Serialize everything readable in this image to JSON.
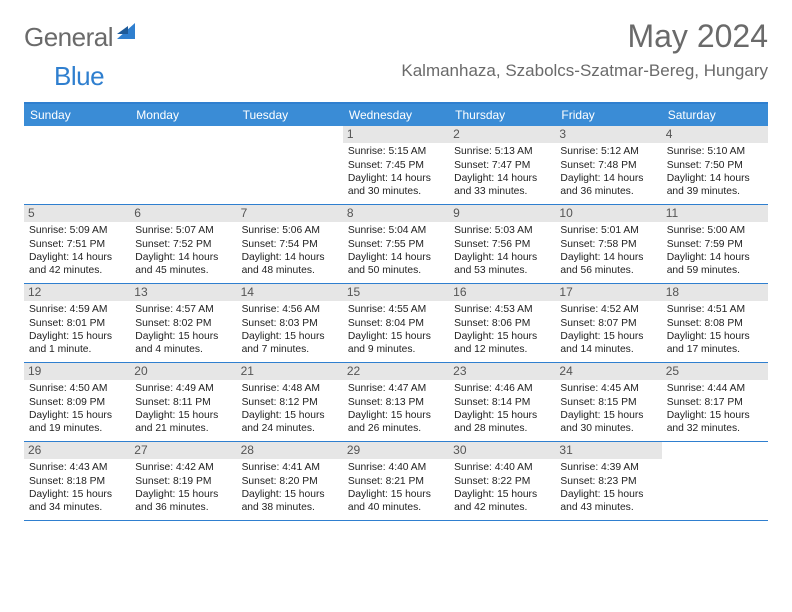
{
  "logo": {
    "text_general": "General",
    "text_blue": "Blue"
  },
  "title": "May 2024",
  "location": "Kalmanhaza, Szabolcs-Szatmar-Bereg, Hungary",
  "colors": {
    "header_bar": "#3a8cd6",
    "border": "#2f7fcf",
    "daynum_bg": "#e6e6e6",
    "text_grey": "#6a6a6a",
    "logo_blue": "#2f7fcf"
  },
  "dow": [
    "Sunday",
    "Monday",
    "Tuesday",
    "Wednesday",
    "Thursday",
    "Friday",
    "Saturday"
  ],
  "weeks": [
    [
      null,
      null,
      null,
      {
        "n": "1",
        "sr": "5:15 AM",
        "ss": "7:45 PM",
        "dl": "14 hours and 30 minutes."
      },
      {
        "n": "2",
        "sr": "5:13 AM",
        "ss": "7:47 PM",
        "dl": "14 hours and 33 minutes."
      },
      {
        "n": "3",
        "sr": "5:12 AM",
        "ss": "7:48 PM",
        "dl": "14 hours and 36 minutes."
      },
      {
        "n": "4",
        "sr": "5:10 AM",
        "ss": "7:50 PM",
        "dl": "14 hours and 39 minutes."
      }
    ],
    [
      {
        "n": "5",
        "sr": "5:09 AM",
        "ss": "7:51 PM",
        "dl": "14 hours and 42 minutes."
      },
      {
        "n": "6",
        "sr": "5:07 AM",
        "ss": "7:52 PM",
        "dl": "14 hours and 45 minutes."
      },
      {
        "n": "7",
        "sr": "5:06 AM",
        "ss": "7:54 PM",
        "dl": "14 hours and 48 minutes."
      },
      {
        "n": "8",
        "sr": "5:04 AM",
        "ss": "7:55 PM",
        "dl": "14 hours and 50 minutes."
      },
      {
        "n": "9",
        "sr": "5:03 AM",
        "ss": "7:56 PM",
        "dl": "14 hours and 53 minutes."
      },
      {
        "n": "10",
        "sr": "5:01 AM",
        "ss": "7:58 PM",
        "dl": "14 hours and 56 minutes."
      },
      {
        "n": "11",
        "sr": "5:00 AM",
        "ss": "7:59 PM",
        "dl": "14 hours and 59 minutes."
      }
    ],
    [
      {
        "n": "12",
        "sr": "4:59 AM",
        "ss": "8:01 PM",
        "dl": "15 hours and 1 minute."
      },
      {
        "n": "13",
        "sr": "4:57 AM",
        "ss": "8:02 PM",
        "dl": "15 hours and 4 minutes."
      },
      {
        "n": "14",
        "sr": "4:56 AM",
        "ss": "8:03 PM",
        "dl": "15 hours and 7 minutes."
      },
      {
        "n": "15",
        "sr": "4:55 AM",
        "ss": "8:04 PM",
        "dl": "15 hours and 9 minutes."
      },
      {
        "n": "16",
        "sr": "4:53 AM",
        "ss": "8:06 PM",
        "dl": "15 hours and 12 minutes."
      },
      {
        "n": "17",
        "sr": "4:52 AM",
        "ss": "8:07 PM",
        "dl": "15 hours and 14 minutes."
      },
      {
        "n": "18",
        "sr": "4:51 AM",
        "ss": "8:08 PM",
        "dl": "15 hours and 17 minutes."
      }
    ],
    [
      {
        "n": "19",
        "sr": "4:50 AM",
        "ss": "8:09 PM",
        "dl": "15 hours and 19 minutes."
      },
      {
        "n": "20",
        "sr": "4:49 AM",
        "ss": "8:11 PM",
        "dl": "15 hours and 21 minutes."
      },
      {
        "n": "21",
        "sr": "4:48 AM",
        "ss": "8:12 PM",
        "dl": "15 hours and 24 minutes."
      },
      {
        "n": "22",
        "sr": "4:47 AM",
        "ss": "8:13 PM",
        "dl": "15 hours and 26 minutes."
      },
      {
        "n": "23",
        "sr": "4:46 AM",
        "ss": "8:14 PM",
        "dl": "15 hours and 28 minutes."
      },
      {
        "n": "24",
        "sr": "4:45 AM",
        "ss": "8:15 PM",
        "dl": "15 hours and 30 minutes."
      },
      {
        "n": "25",
        "sr": "4:44 AM",
        "ss": "8:17 PM",
        "dl": "15 hours and 32 minutes."
      }
    ],
    [
      {
        "n": "26",
        "sr": "4:43 AM",
        "ss": "8:18 PM",
        "dl": "15 hours and 34 minutes."
      },
      {
        "n": "27",
        "sr": "4:42 AM",
        "ss": "8:19 PM",
        "dl": "15 hours and 36 minutes."
      },
      {
        "n": "28",
        "sr": "4:41 AM",
        "ss": "8:20 PM",
        "dl": "15 hours and 38 minutes."
      },
      {
        "n": "29",
        "sr": "4:40 AM",
        "ss": "8:21 PM",
        "dl": "15 hours and 40 minutes."
      },
      {
        "n": "30",
        "sr": "4:40 AM",
        "ss": "8:22 PM",
        "dl": "15 hours and 42 minutes."
      },
      {
        "n": "31",
        "sr": "4:39 AM",
        "ss": "8:23 PM",
        "dl": "15 hours and 43 minutes."
      },
      null
    ]
  ],
  "labels": {
    "sunrise": "Sunrise: ",
    "sunset": "Sunset: ",
    "daylight": "Daylight: "
  }
}
